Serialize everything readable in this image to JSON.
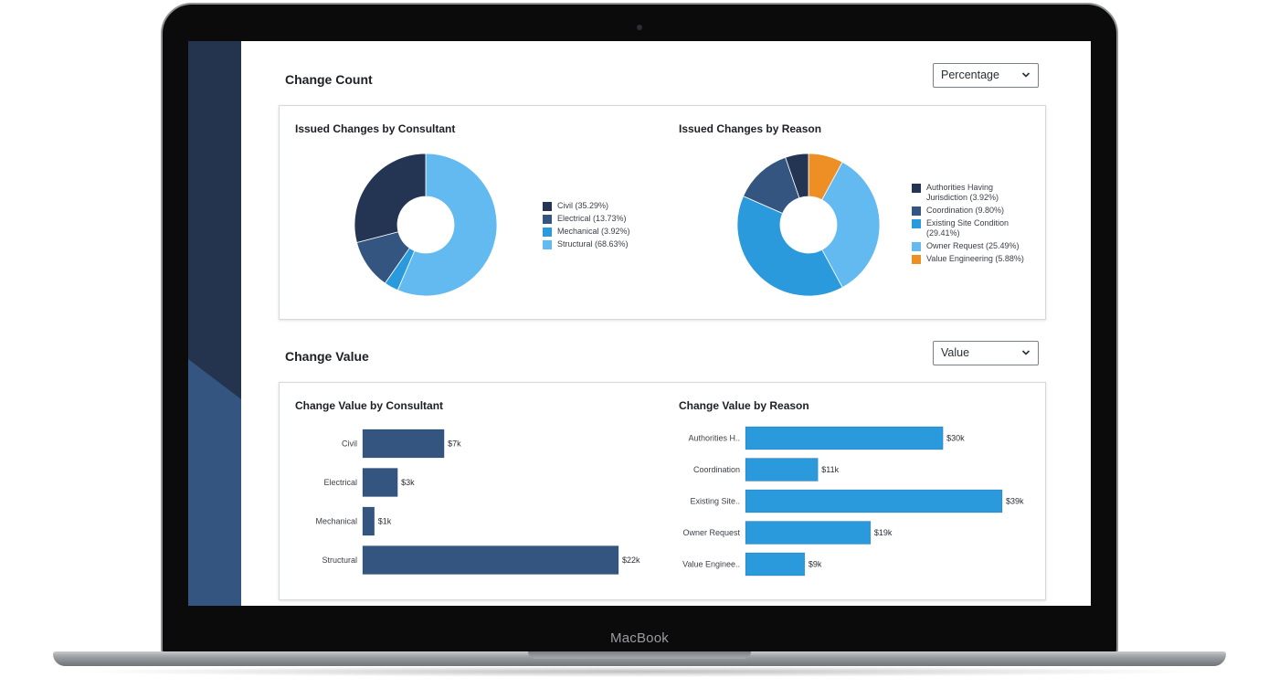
{
  "device": {
    "brand_label": "MacBook"
  },
  "change_count": {
    "title": "Change Count",
    "dropdown": {
      "selected": "Percentage"
    },
    "consultant_chart": {
      "title": "Issued Changes by Consultant",
      "legend": [
        {
          "label": "Civil (35.29%)",
          "color": "#233553"
        },
        {
          "label": "Electrical (13.73%)",
          "color": "#33557f"
        },
        {
          "label": "Mechanical (3.92%)",
          "color": "#2a9add"
        },
        {
          "label": "Structural (68.63%)",
          "color": "#62baf0"
        }
      ]
    },
    "reason_chart": {
      "title": "Issued Changes by Reason",
      "legend": [
        {
          "label": "Authorities Having Jurisdiction (3.92%)",
          "color": "#233553"
        },
        {
          "label": "Coordination (9.80%)",
          "color": "#33557f"
        },
        {
          "label": "Existing Site Condition (29.41%)",
          "color": "#2a9add"
        },
        {
          "label": "Owner Request (25.49%)",
          "color": "#62baf0"
        },
        {
          "label": "Value Engineering (5.88%)",
          "color": "#ee8f26"
        }
      ]
    }
  },
  "change_value": {
    "title": "Change Value",
    "dropdown": {
      "selected": "Value"
    },
    "consultant_chart": {
      "title": "Change Value by Consultant"
    },
    "reason_chart": {
      "title": "Change Value by Reason"
    }
  },
  "chart_data": [
    {
      "type": "pie",
      "title": "Issued Changes by Consultant",
      "categories": [
        "Civil",
        "Electrical",
        "Mechanical",
        "Structural"
      ],
      "values": [
        35.29,
        13.73,
        3.92,
        68.63
      ],
      "colors": [
        "#233553",
        "#33557f",
        "#2a9add",
        "#62baf0"
      ]
    },
    {
      "type": "pie",
      "title": "Issued Changes by Reason",
      "categories": [
        "Authorities Having Jurisdiction",
        "Coordination",
        "Existing Site Condition",
        "Owner Request",
        "Value Engineering"
      ],
      "values": [
        3.92,
        9.8,
        29.41,
        25.49,
        5.88
      ],
      "colors": [
        "#233553",
        "#33557f",
        "#2a9add",
        "#62baf0",
        "#ee8f26"
      ]
    },
    {
      "type": "bar",
      "orientation": "horizontal",
      "title": "Change Value by Consultant",
      "categories": [
        "Civil",
        "Electrical",
        "Mechanical",
        "Structural"
      ],
      "values": [
        7,
        3,
        1,
        22
      ],
      "value_labels": [
        "$7k",
        "$3k",
        "$1k",
        "$22k"
      ],
      "unit": "$k",
      "color": "#33557f"
    },
    {
      "type": "bar",
      "orientation": "horizontal",
      "title": "Change Value by Reason",
      "categories": [
        "Authorities H..",
        "Coordination",
        "Existing Site..",
        "Owner Request",
        "Value Enginee.."
      ],
      "values": [
        30,
        11,
        39,
        19,
        9
      ],
      "value_labels": [
        "$30k",
        "$11k",
        "$39k",
        "$19k",
        "$9k"
      ],
      "unit": "$k",
      "color": "#2a9add"
    }
  ]
}
